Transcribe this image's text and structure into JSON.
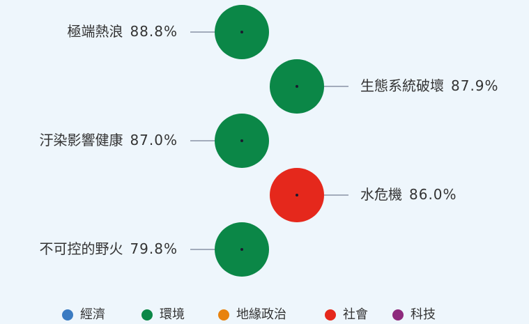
{
  "chart_data": {
    "type": "bubble",
    "categories": [
      "極端熱浪",
      "生態系統破壞",
      "汙染影響健康",
      "水危機",
      "不可控的野火"
    ],
    "values": [
      88.8,
      87.9,
      87.0,
      86.0,
      79.8
    ],
    "value_labels": [
      "88.8%",
      "87.9%",
      "87.0%",
      "86.0%",
      "79.8%"
    ],
    "groups": [
      "環境",
      "環境",
      "環境",
      "社會",
      "環境"
    ],
    "legend": [
      {
        "name": "經濟",
        "color": "#3b7bc2"
      },
      {
        "name": "環境",
        "color": "#0b8747"
      },
      {
        "name": "地緣政治",
        "color": "#e8820e"
      },
      {
        "name": "社會",
        "color": "#e5281c"
      },
      {
        "name": "科技",
        "color": "#8e2a7d"
      }
    ]
  }
}
